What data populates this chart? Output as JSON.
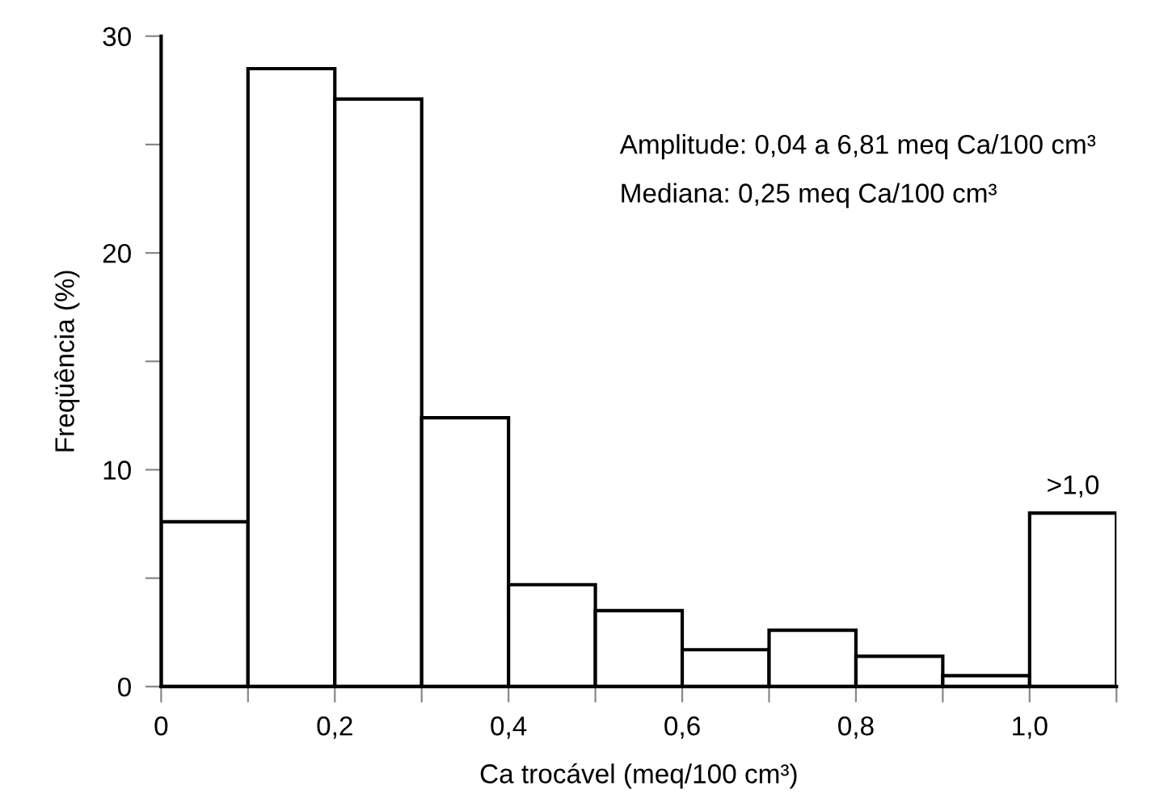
{
  "chart_data": {
    "type": "histogram",
    "xlabel": "Ca trocável (meq/100 cm³)",
    "ylabel": "Freqüência (%)",
    "bins": [
      0,
      0.1,
      0.2,
      0.3,
      0.4,
      0.5,
      0.6,
      0.7,
      0.8,
      0.9,
      1.0,
      1.1
    ],
    "values": [
      7.6,
      28.5,
      27.1,
      12.4,
      4.7,
      3.5,
      1.7,
      2.6,
      1.4,
      0.5,
      8.0
    ],
    "color": "#ffffff",
    "xlim": [
      0,
      1.1
    ],
    "xticks": [
      {
        "value": 0,
        "label": "0"
      },
      {
        "value": 0.1,
        "label": null
      },
      {
        "value": 0.2,
        "label": "0,2"
      },
      {
        "value": 0.3,
        "label": null
      },
      {
        "value": 0.4,
        "label": "0,4"
      },
      {
        "value": 0.5,
        "label": null
      },
      {
        "value": 0.6,
        "label": "0,6"
      },
      {
        "value": 0.7,
        "label": null
      },
      {
        "value": 0.8,
        "label": "0,8"
      },
      {
        "value": 0.9,
        "label": null
      },
      {
        "value": 1.0,
        "label": "1,0"
      },
      {
        "value": 1.1,
        "label": null
      }
    ],
    "ylim": [
      0,
      30
    ],
    "yticks": [
      0,
      {
        "value": 5,
        "label": null
      },
      10,
      {
        "value": 15,
        "label": null
      },
      20,
      {
        "value": 25,
        "label": null
      },
      30
    ],
    "grid": false,
    "legend": false,
    "annotations": [
      "Amplitude: 0,04 a 6,81 meq Ca/100 cm³",
      "Mediana: 0,25 meq Ca/100 cm³",
      {
        "text": ">1,0",
        "x": 1.05,
        "y": 8.0
      }
    ]
  }
}
